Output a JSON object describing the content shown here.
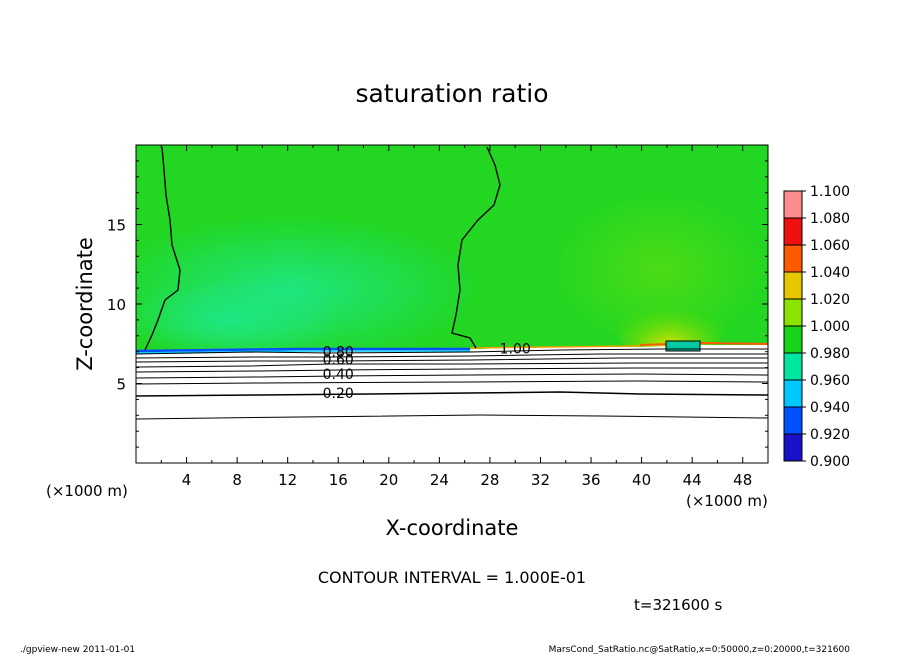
{
  "chart_data": {
    "type": "heatmap",
    "title": "saturation ratio",
    "xlabel": "X-coordinate",
    "ylabel": "Z-coordinate",
    "x_unit": "(×1000 m)",
    "y_unit": "(×1000 m)",
    "xlim": [
      0,
      50
    ],
    "ylim": [
      0,
      20
    ],
    "x_ticks": [
      4,
      8,
      12,
      16,
      20,
      24,
      28,
      32,
      36,
      40,
      44,
      48
    ],
    "y_ticks": [
      5,
      10,
      15
    ],
    "colorbar": {
      "levels": [
        0.9,
        0.92,
        0.94,
        0.96,
        0.98,
        1.0,
        1.02,
        1.04,
        1.06,
        1.08,
        1.1
      ],
      "labels": [
        "0.900",
        "0.920",
        "0.940",
        "0.960",
        "0.980",
        "1.000",
        "1.020",
        "1.040",
        "1.060",
        "1.080",
        "1.100"
      ],
      "colors": [
        "#7a1fa0",
        "#1a10c8",
        "#0050ff",
        "#00c8ff",
        "#00e6a0",
        "#18d418",
        "#8ae400",
        "#e6c800",
        "#ff5a00",
        "#f01010",
        "#ff8c8c"
      ]
    },
    "contour_labels": [
      {
        "text": "0.80",
        "x": 16.0,
        "z": 7.0
      },
      {
        "text": "0.60",
        "x": 16.0,
        "z": 6.5
      },
      {
        "text": "0.40",
        "x": 16.0,
        "z": 5.6
      },
      {
        "text": "0.20",
        "x": 16.0,
        "z": 4.4
      },
      {
        "text": "1.00",
        "x": 30.0,
        "z": 7.2
      }
    ],
    "contour_interval": "CONTOUR INTERVAL = 1.000E-01",
    "time": "t=321600 s"
  },
  "footer": {
    "left": "./gpview-new  2011-01-01",
    "right": "MarsCond_SatRatio.nc@SatRatio,x=0:50000,z=0:20000,t=321600"
  }
}
